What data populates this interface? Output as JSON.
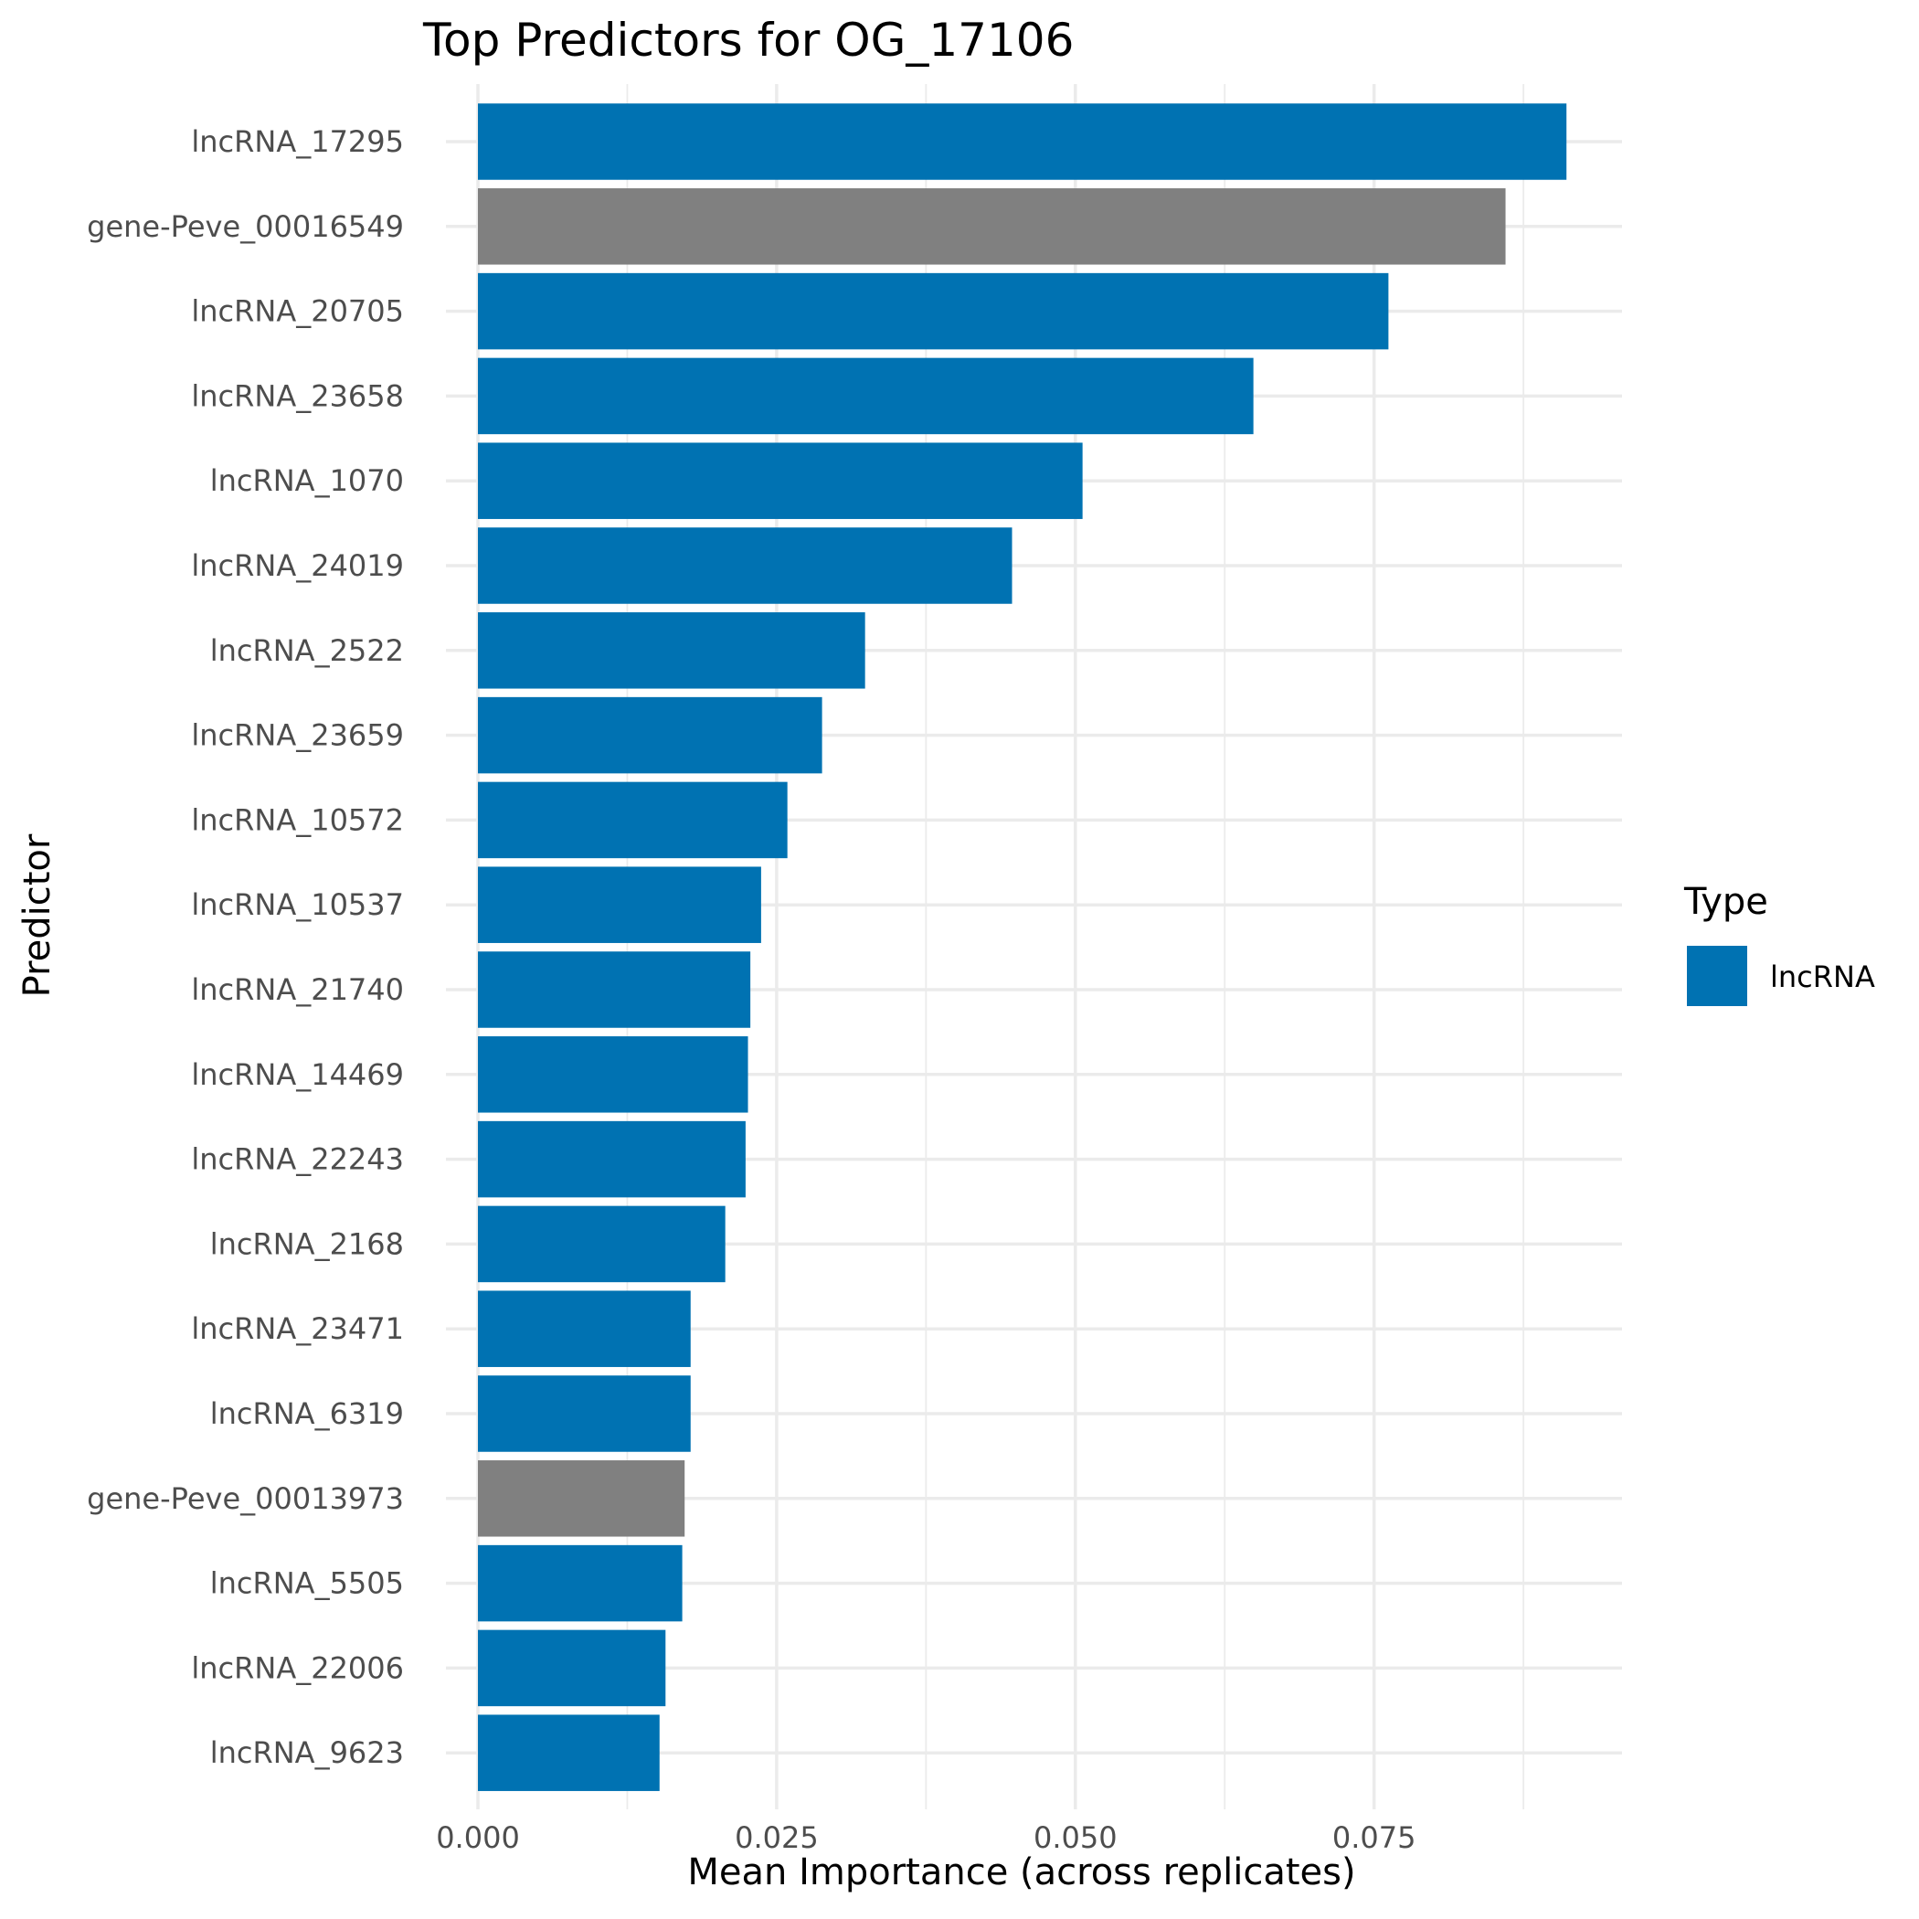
{
  "chart_data": {
    "type": "bar",
    "orientation": "horizontal",
    "title": "Top Predictors for OG_17106",
    "xlabel": "Mean Importance (across replicates)",
    "ylabel": "Predictor",
    "xlim": [
      0,
      0.0955
    ],
    "x_ticks": [
      "0.000",
      "0.025",
      "0.050",
      "0.075"
    ],
    "x_tick_values": [
      0,
      0.025,
      0.05,
      0.075
    ],
    "grid": true,
    "legend": {
      "title": "Type",
      "placement": "right",
      "entries": [
        {
          "label": "lncRNA",
          "color": "#0072B2"
        }
      ]
    },
    "colors": {
      "lncRNA": "#0072B2",
      "other": "#808080"
    },
    "categories": [
      "lncRNA_17295",
      "gene-Peve_00016549",
      "lncRNA_20705",
      "lncRNA_23658",
      "lncRNA_1070",
      "lncRNA_24019",
      "lncRNA_2522",
      "lncRNA_23659",
      "lncRNA_10572",
      "lncRNA_10537",
      "lncRNA_21740",
      "lncRNA_14469",
      "lncRNA_22243",
      "lncRNA_2168",
      "lncRNA_23471",
      "lncRNA_6319",
      "gene-Peve_00013973",
      "lncRNA_5505",
      "lncRNA_22006",
      "lncRNA_9623"
    ],
    "values": [
      0.0911,
      0.086,
      0.0762,
      0.0649,
      0.0506,
      0.0447,
      0.0324,
      0.0288,
      0.0259,
      0.0237,
      0.0228,
      0.0226,
      0.0224,
      0.0207,
      0.0178,
      0.0178,
      0.0173,
      0.0171,
      0.0157,
      0.0152
    ],
    "types": [
      "lncRNA",
      "other",
      "lncRNA",
      "lncRNA",
      "lncRNA",
      "lncRNA",
      "lncRNA",
      "lncRNA",
      "lncRNA",
      "lncRNA",
      "lncRNA",
      "lncRNA",
      "lncRNA",
      "lncRNA",
      "lncRNA",
      "lncRNA",
      "other",
      "lncRNA",
      "lncRNA",
      "lncRNA"
    ]
  }
}
